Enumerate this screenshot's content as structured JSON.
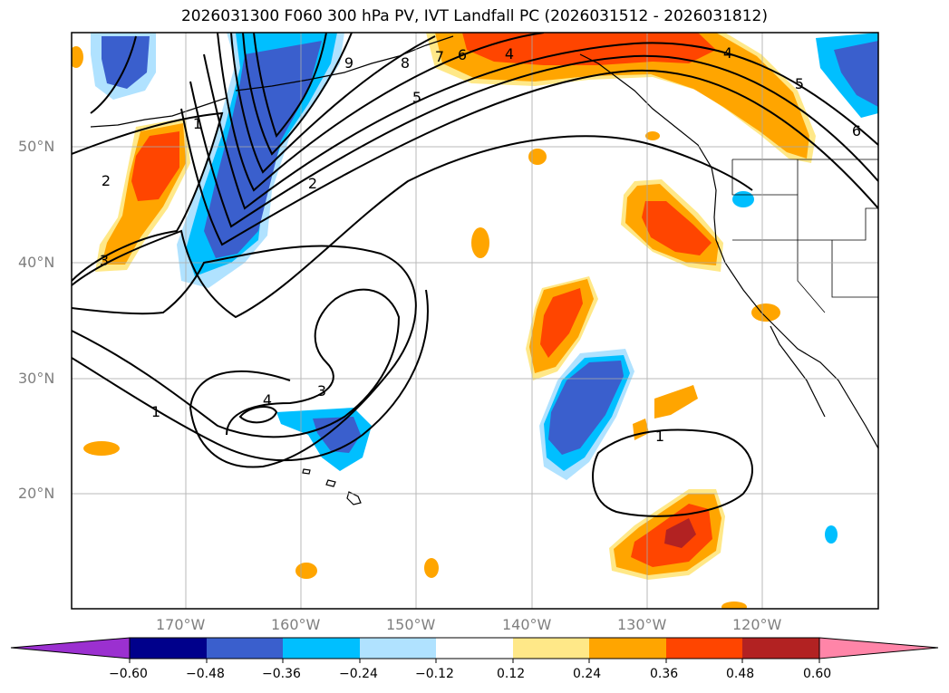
{
  "title": "2026031300 F060 300 hPa PV, IVT Landfall PC (2026031512 - 2026031812)",
  "lat_labels": [
    "50°N",
    "40°N",
    "30°N",
    "20°N"
  ],
  "lon_labels": [
    "170°W",
    "160°W",
    "150°W",
    "140°W",
    "130°W",
    "120°W"
  ],
  "contour_labels": [
    "9",
    "8",
    "7",
    "6",
    "5",
    "4",
    "2",
    "1",
    "2",
    "3",
    "4",
    "3",
    "1",
    "1",
    "4",
    "5",
    "6"
  ],
  "colorbar": {
    "ticks": [
      "−0.60",
      "−0.48",
      "−0.36",
      "−0.24",
      "−0.12",
      "0.12",
      "0.24",
      "0.36",
      "0.48",
      "0.60"
    ],
    "colors": [
      "#9b30d0",
      "#00008b",
      "#3a5fcd",
      "#00bfff",
      "#b0e2ff",
      "#ffffff",
      "#ffe888",
      "#ffa500",
      "#ff4500",
      "#b22222",
      "#ff85a8"
    ]
  },
  "colors": {
    "blue_light": "#b0e2ff",
    "blue_mid": "#00bfff",
    "blue_dark": "#3a5fcd",
    "yellow": "#ffe888",
    "orange": "#ffa500",
    "red": "#ff4500",
    "darkred": "#b22222"
  }
}
